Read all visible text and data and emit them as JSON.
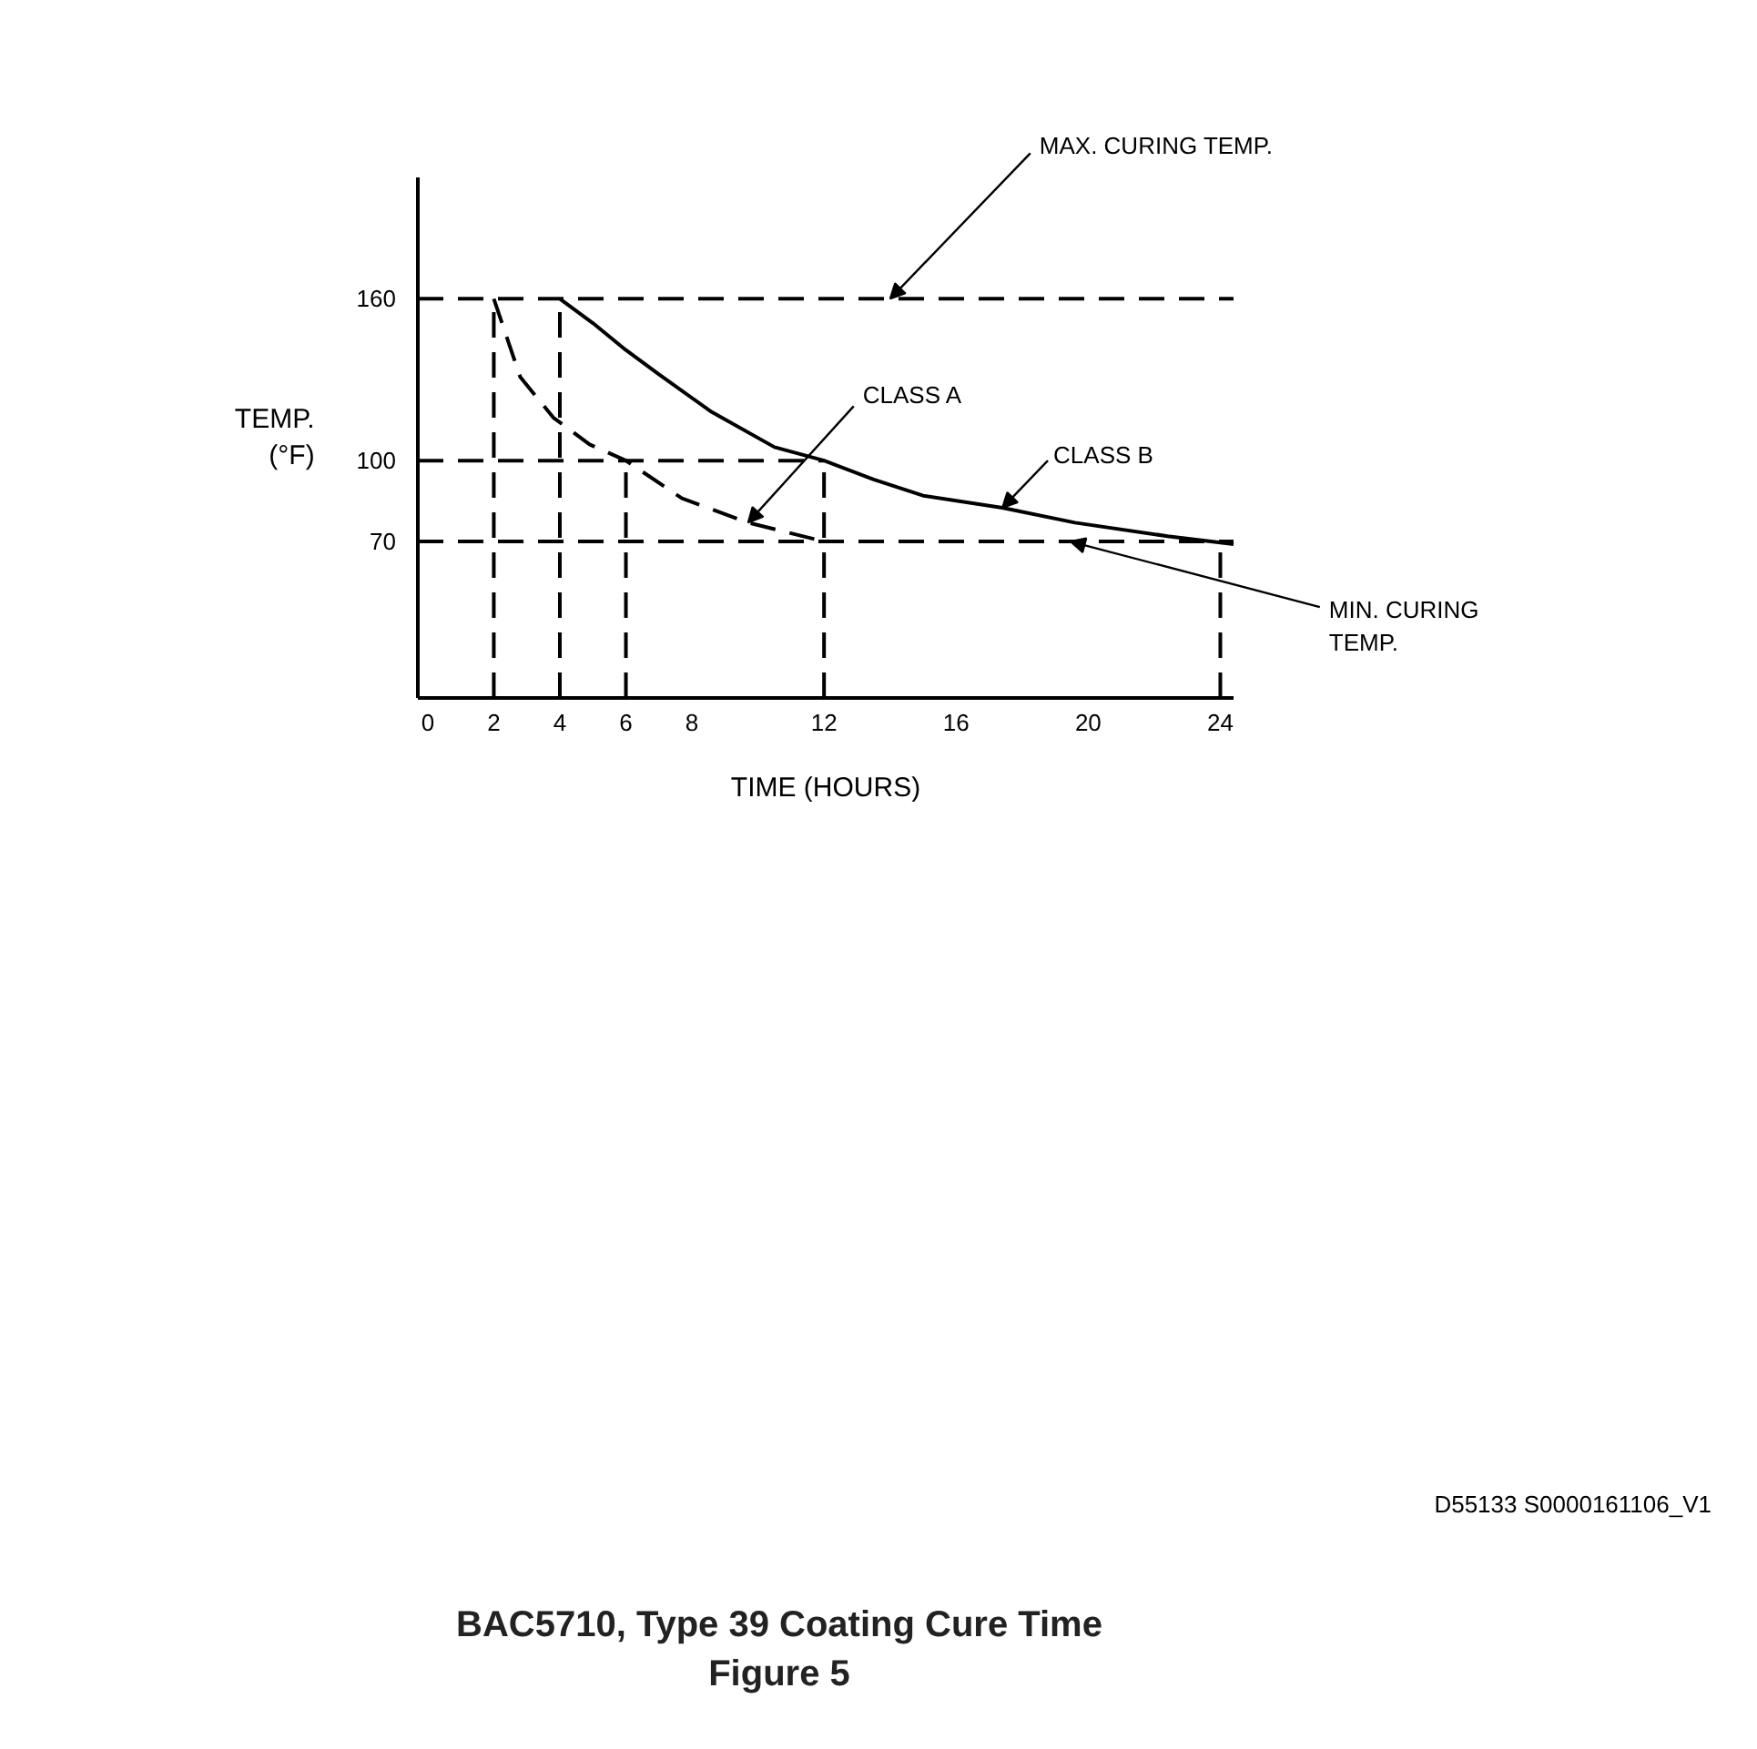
{
  "chart_data": {
    "type": "line",
    "title": "BAC5710, Type 39 Coating Cure Time",
    "subtitle": "Figure 5",
    "xlabel": "TIME (HOURS)",
    "ylabel": "TEMP. (°F)",
    "annotations": [
      "D55133 S0000161106_V1"
    ],
    "xlim": [
      -0.3,
      24.4
    ],
    "ylim": [
      12,
      205
    ],
    "xticks": [
      0,
      2,
      4,
      6,
      8,
      12,
      16,
      20,
      24
    ],
    "yticks": [
      70,
      100,
      160
    ],
    "grid": false,
    "ref_lines": [
      {
        "axis": "y",
        "value": 160,
        "label": "MAX. CURING TEMP.",
        "color": "#000000",
        "line_style": "dashed"
      },
      {
        "axis": "y",
        "value": 70,
        "label": "MIN. CURING TEMP.",
        "color": "#000000",
        "line_style": "dashed"
      }
    ],
    "series": [
      {
        "name": "CLASS A",
        "color": "#000000",
        "line_style": "dashed",
        "x": [
          2,
          2.8,
          3.8,
          4.9,
          6,
          7.7,
          9.7,
          12
        ],
        "values": [
          160,
          131,
          116,
          106,
          100,
          86,
          77,
          70
        ]
      },
      {
        "name": "CLASS B",
        "color": "#000000",
        "line_style": "solid",
        "x": [
          4,
          5,
          6,
          7,
          8.6,
          10.5,
          12,
          13.5,
          15,
          17.4,
          19.6,
          22.4,
          24.4
        ],
        "values": [
          160,
          151,
          141,
          132,
          118,
          105,
          100,
          93,
          87,
          82.5,
          77,
          72,
          69
        ]
      },
      {
        "color": "#000000",
        "line_style": "dashed",
        "x": [
          -0.3,
          12
        ],
        "values": [
          100,
          100
        ]
      },
      {
        "color": "#000000",
        "line_style": "dashed",
        "x": [
          2,
          2
        ],
        "values": [
          12,
          160
        ]
      },
      {
        "color": "#000000",
        "line_style": "dashed",
        "x": [
          4,
          4
        ],
        "values": [
          12,
          160
        ]
      },
      {
        "color": "#000000",
        "line_style": "dashed",
        "x": [
          6,
          6
        ],
        "values": [
          12,
          100
        ]
      },
      {
        "color": "#000000",
        "line_style": "dashed",
        "x": [
          12,
          12
        ],
        "values": [
          12,
          100
        ]
      },
      {
        "color": "#000000",
        "line_style": "dashed",
        "x": [
          24,
          24
        ],
        "values": [
          12,
          70
        ]
      }
    ]
  }
}
